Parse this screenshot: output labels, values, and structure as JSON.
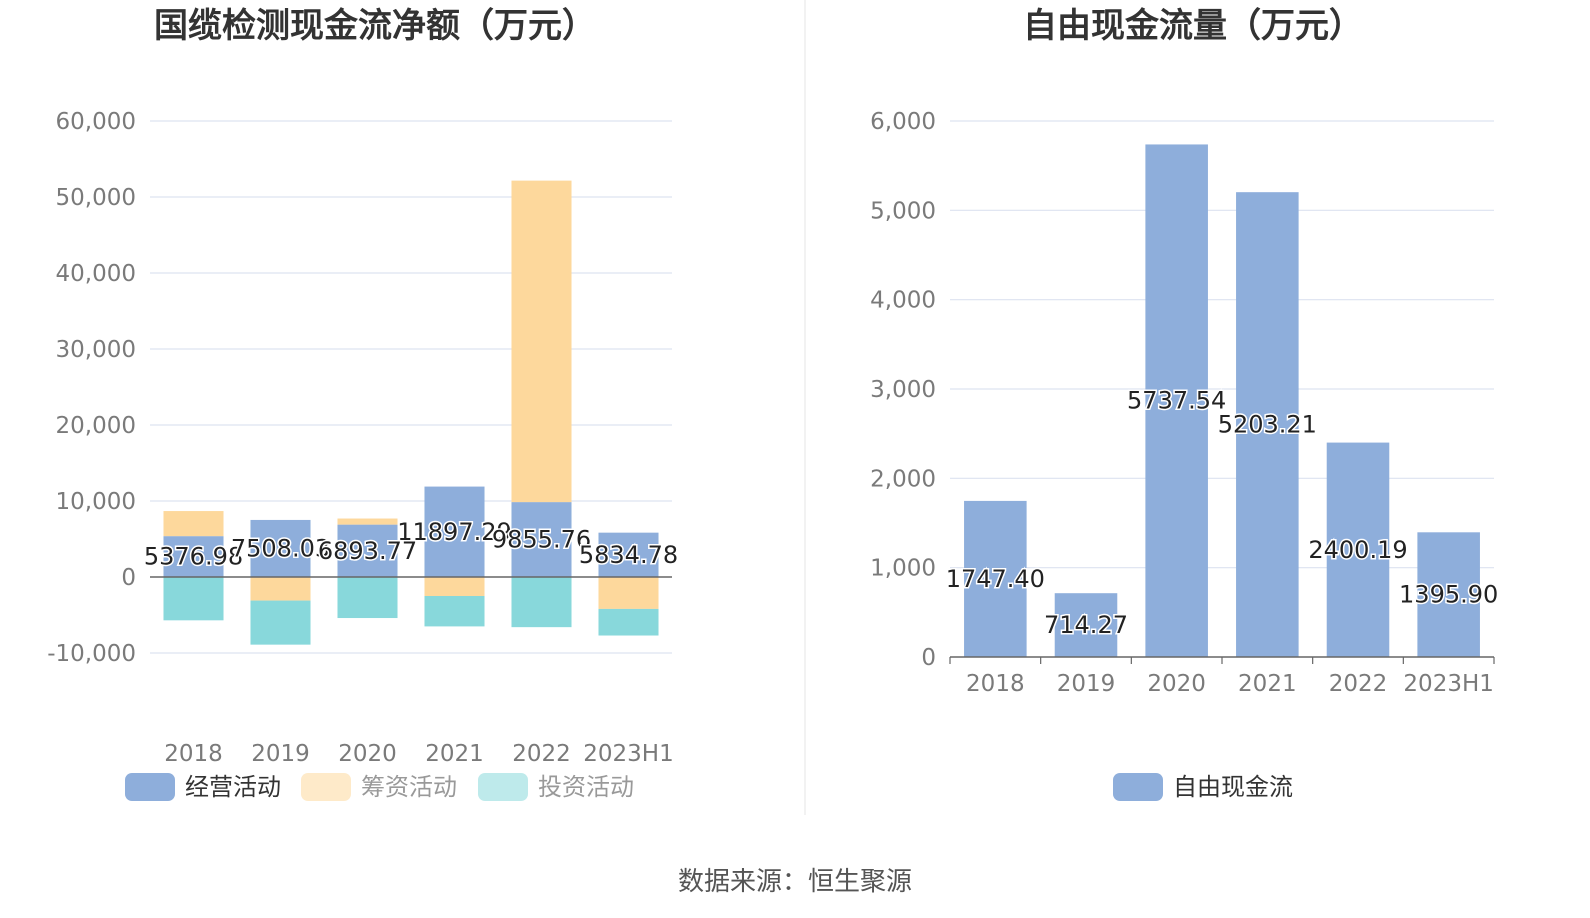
{
  "colors": {
    "operating": "#8eaedb",
    "financing": "#fdd89c",
    "investing": "#88d8db",
    "free_cash": "#8eaedb",
    "grid": "#dde3f0",
    "axis": "#666666"
  },
  "chart_data": [
    {
      "type": "bar",
      "stacked": true,
      "title": "国缆检测现金流净额（万元）",
      "categories": [
        "2018",
        "2019",
        "2020",
        "2021",
        "2022",
        "2023H1"
      ],
      "series": [
        {
          "name": "经营活动",
          "color_key": "operating",
          "values": [
            5376.98,
            7508.03,
            6893.77,
            11897.29,
            9855.76,
            5834.78
          ]
        },
        {
          "name": "筹资活动",
          "color_key": "financing",
          "values": [
            3300,
            -3100,
            800,
            -2500,
            42300,
            -4200
          ]
        },
        {
          "name": "投资活动",
          "color_key": "investing",
          "values": [
            -5700,
            -5800,
            -5400,
            -4000,
            -6600,
            -3500
          ]
        }
      ],
      "data_labels": [
        "5376.98",
        "7508.03",
        "6893.77",
        "11897.29",
        "9855.76",
        "5834.78"
      ],
      "ylim": [
        -10000,
        60000
      ],
      "yticks": [
        -10000,
        0,
        10000,
        20000,
        30000,
        40000,
        50000,
        60000
      ],
      "ytick_labels": [
        "-10,000",
        "0",
        "10,000",
        "20,000",
        "30,000",
        "40,000",
        "50,000",
        "60,000"
      ],
      "xlabel": "",
      "ylabel": "",
      "legend_position": "bottom"
    },
    {
      "type": "bar",
      "title": "自由现金流量（万元）",
      "categories": [
        "2018",
        "2019",
        "2020",
        "2021",
        "2022",
        "2023H1"
      ],
      "series": [
        {
          "name": "自由现金流",
          "color_key": "free_cash",
          "values": [
            1747.4,
            714.27,
            5737.54,
            5203.21,
            2400.19,
            1395.9
          ]
        }
      ],
      "data_labels": [
        "1747.40",
        "714.27",
        "5737.54",
        "5203.21",
        "2400.19",
        "1395.90"
      ],
      "ylim": [
        0,
        6000
      ],
      "yticks": [
        0,
        1000,
        2000,
        3000,
        4000,
        5000,
        6000
      ],
      "ytick_labels": [
        "0",
        "1,000",
        "2,000",
        "3,000",
        "4,000",
        "5,000",
        "6,000"
      ],
      "xlabel": "",
      "ylabel": "",
      "legend_position": "bottom"
    }
  ],
  "legend_left": [
    {
      "label": "经营活动",
      "color_key": "operating",
      "text_color": "#333333"
    },
    {
      "label": "筹资活动",
      "color_key": "financing",
      "text_color": "#999999"
    },
    {
      "label": "投资活动",
      "color_key": "investing",
      "text_color": "#999999"
    }
  ],
  "legend_right": [
    {
      "label": "自由现金流",
      "color_key": "free_cash",
      "text_color": "#333333"
    }
  ],
  "source_text": "数据来源：恒生聚源"
}
